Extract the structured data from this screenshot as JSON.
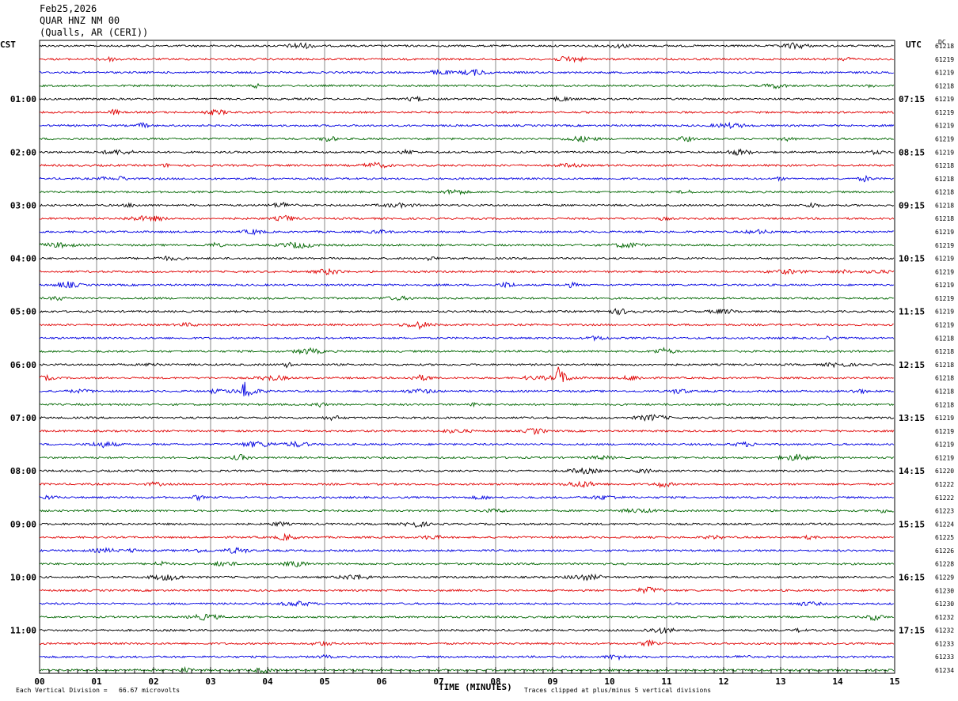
{
  "header": {
    "date": "Feb25,2026",
    "station": "QUAR HNZ NM 00",
    "location": "(Qualls, AR (CERI))"
  },
  "labels": {
    "left_tz": "CST",
    "right_tz": "UTC",
    "dc_header": "DC"
  },
  "footer": {
    "x_title": "TIME (MINUTES)",
    "scale_note": "Each Vertical Division =   66.67 microvolts",
    "clip_note": "Traces clipped at plus/minus 5 vertical divisions"
  },
  "colors": {
    "trace_cycle": [
      "#000000",
      "#e00000",
      "#0000e0",
      "#006600"
    ],
    "grid": "#888888"
  },
  "chart_data": {
    "type": "line",
    "x_range_minutes": [
      0,
      15
    ],
    "x_ticks": [
      "00",
      "01",
      "02",
      "03",
      "04",
      "05",
      "06",
      "07",
      "08",
      "09",
      "10",
      "11",
      "12",
      "13",
      "14",
      "15"
    ],
    "traces_count": 48,
    "trace_minutes": 15,
    "left_hour_labels": [
      {
        "trace": 4,
        "label": "01:00"
      },
      {
        "trace": 8,
        "label": "02:00"
      },
      {
        "trace": 12,
        "label": "03:00"
      },
      {
        "trace": 16,
        "label": "04:00"
      },
      {
        "trace": 20,
        "label": "05:00"
      },
      {
        "trace": 24,
        "label": "06:00"
      },
      {
        "trace": 28,
        "label": "07:00"
      },
      {
        "trace": 32,
        "label": "08:00"
      },
      {
        "trace": 36,
        "label": "09:00"
      },
      {
        "trace": 40,
        "label": "10:00"
      },
      {
        "trace": 44,
        "label": "11:00"
      }
    ],
    "right_hour_labels": [
      {
        "trace": 4,
        "label": "07:15"
      },
      {
        "trace": 8,
        "label": "08:15"
      },
      {
        "trace": 12,
        "label": "09:15"
      },
      {
        "trace": 16,
        "label": "10:15"
      },
      {
        "trace": 20,
        "label": "11:15"
      },
      {
        "trace": 24,
        "label": "12:15"
      },
      {
        "trace": 28,
        "label": "13:15"
      },
      {
        "trace": 32,
        "label": "14:15"
      },
      {
        "trace": 36,
        "label": "15:15"
      },
      {
        "trace": 40,
        "label": "16:15"
      },
      {
        "trace": 44,
        "label": "17:15"
      }
    ],
    "dc_offsets": [
      "61218",
      "61219",
      "61219",
      "61218",
      "61219",
      "61219",
      "61219",
      "61219",
      "61219",
      "61218",
      "61218",
      "61218",
      "61218",
      "61218",
      "61219",
      "61219",
      "61219",
      "61219",
      "61219",
      "61219",
      "61219",
      "61219",
      "61218",
      "61218",
      "61218",
      "61218",
      "61218",
      "61218",
      "61219",
      "61219",
      "61219",
      "61219",
      "61220",
      "61222",
      "61222",
      "61223",
      "61224",
      "61225",
      "61226",
      "61228",
      "61229",
      "61230",
      "61230",
      "61232",
      "61232",
      "61233",
      "61233",
      "61234"
    ],
    "events": [
      {
        "trace": 26,
        "minute": 3.6,
        "amplitude": "large"
      },
      {
        "trace": 25,
        "minute": 9.1,
        "amplitude": "large"
      }
    ]
  }
}
